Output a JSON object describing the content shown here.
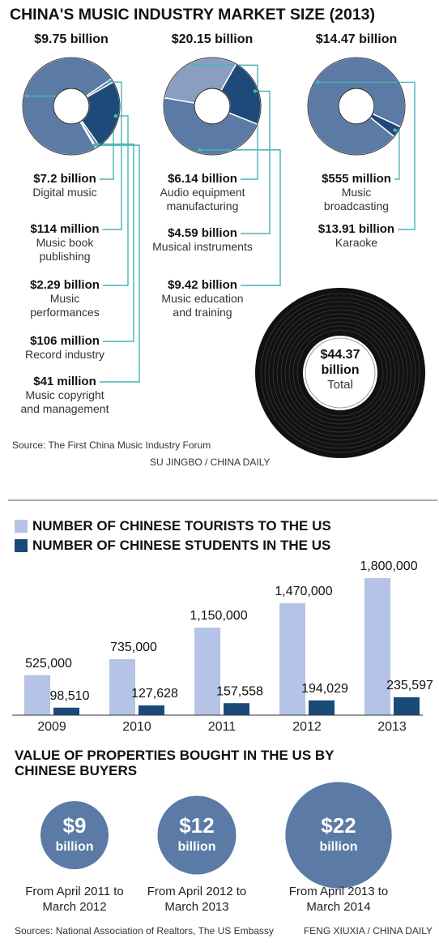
{
  "chart_data": [
    {
      "type": "donut",
      "title": "CHINA'S MUSIC INDUSTRY MARKET SIZE (2013)",
      "pies": [
        {
          "title": "$9.75 billion",
          "categories": [
            "Digital music",
            "Music book publishing",
            "Music performances",
            "Record industry",
            "Music copyright and management"
          ],
          "values": [
            7.2,
            0.114,
            2.29,
            0.106,
            0.041
          ],
          "value_labels": [
            "$7.2 billion",
            "$114 million",
            "$2.29 billion",
            "$106 million",
            "$41 million"
          ],
          "colors": [
            "#5b7aa6",
            "#5b7aa6",
            "#1d4a7a",
            "#5b7aa6",
            "#5b7aa6"
          ]
        },
        {
          "title": "$20.15 billion",
          "categories": [
            "Audio equipment manufacturing",
            "Musical instruments",
            "Music education and training"
          ],
          "values": [
            6.14,
            4.59,
            9.42
          ],
          "value_labels": [
            "$6.14 billion",
            "$4.59 billion",
            "$9.42 billion"
          ],
          "colors": [
            "#8a9fc0",
            "#1d4a7a",
            "#5b7aa6"
          ]
        },
        {
          "title": "$14.47 billion",
          "categories": [
            "Music broadcasting",
            "Karaoke"
          ],
          "values": [
            0.555,
            13.91
          ],
          "value_labels": [
            "$555 million",
            "$13.91 billion"
          ],
          "colors": [
            "#1d4a7a",
            "#5b7aa6"
          ]
        }
      ],
      "total": {
        "value_label": "$44.37 billion",
        "label": "Total"
      },
      "source": "Source: The First China Music Industry Forum",
      "credit": "SU JINGBO / CHINA DAILY"
    },
    {
      "type": "bar",
      "categories": [
        "2009",
        "2010",
        "2011",
        "2012",
        "2013"
      ],
      "series": [
        {
          "name": "NUMBER OF CHINESE TOURISTS TO THE US",
          "color": "#b4c3e6",
          "values": [
            525000,
            735000,
            1150000,
            1470000,
            1800000
          ],
          "value_labels": [
            "525,000",
            "735,000",
            "1,150,000",
            "1,470,000",
            "1,800,000"
          ]
        },
        {
          "name": "NUMBER OF CHINESE STUDENTS IN THE US",
          "color": "#1a4a7a",
          "values": [
            98510,
            127628,
            157558,
            194029,
            235597
          ],
          "value_labels": [
            "98,510",
            "127,628",
            "157,558",
            "194,029",
            "235,597"
          ]
        }
      ]
    },
    {
      "type": "bubble",
      "title": "VALUE OF PROPERTIES BOUGHT IN THE US BY CHINESE BUYERS",
      "categories": [
        "From April 2011 to March 2012",
        "From April 2012 to March 2013",
        "From April 2013 to March 2014"
      ],
      "values": [
        9,
        12,
        22
      ],
      "value_labels": [
        "$9",
        "$12",
        "$22"
      ],
      "unit": "billion",
      "color": "#5b7aa6",
      "source": "Sources: National Association of Realtors, The US Embassy",
      "credit": "FENG XIUXIA / CHINA DAILY"
    }
  ]
}
